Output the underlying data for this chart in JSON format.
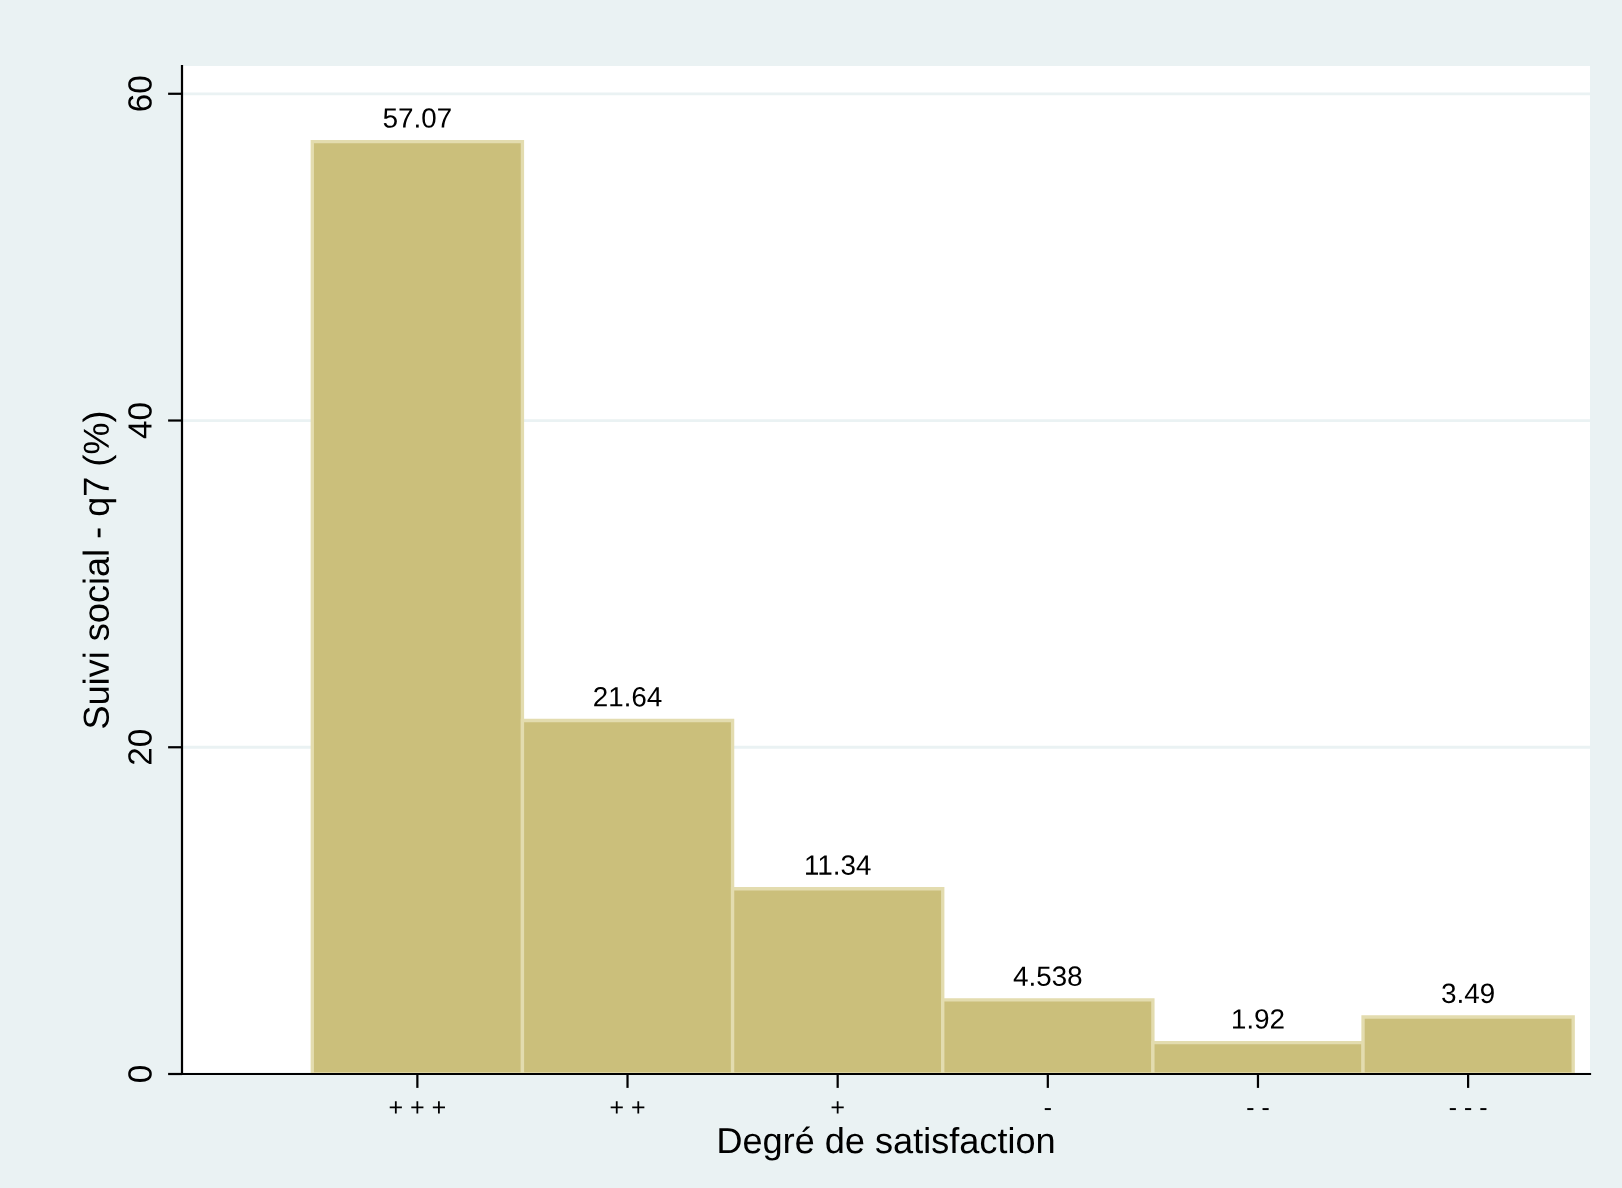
{
  "chart_data": {
    "type": "bar",
    "xlabel": "Degré de satisfaction",
    "ylabel": "Suivi social - q7 (%)",
    "categories": [
      "+ + +",
      "+ +",
      "+",
      "-",
      "- -",
      "- - -"
    ],
    "values": [
      57.07,
      21.64,
      11.34,
      4.538,
      1.92,
      3.49
    ],
    "color": "#cbbf7b",
    "data_labels": true,
    "ylim": [
      0,
      61.7
    ],
    "yticks": [
      0,
      20,
      40,
      60
    ],
    "grid": "y"
  }
}
